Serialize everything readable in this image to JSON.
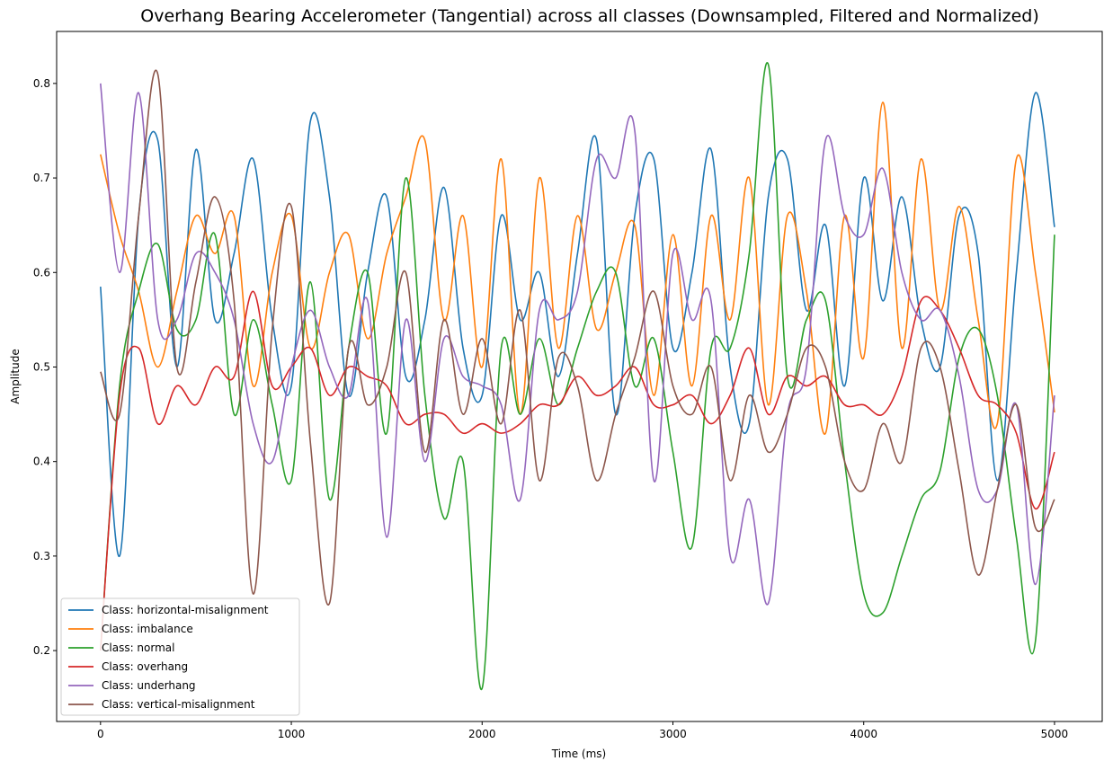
{
  "chart_data": {
    "type": "line",
    "title": "Overhang Bearing Accelerometer (Tangential) across all classes (Downsampled, Filtered and Normalized)",
    "xlabel": "Time (ms)",
    "ylabel": "Amplitude",
    "xlim": [
      -230,
      5250
    ],
    "ylim": [
      0.125,
      0.855
    ],
    "xticks": [
      0,
      1000,
      2000,
      3000,
      4000,
      5000
    ],
    "yticks": [
      0.2,
      0.3,
      0.4,
      0.5,
      0.6,
      0.7,
      0.8
    ],
    "xtick_labels": [
      "0",
      "1000",
      "2000",
      "3000",
      "4000",
      "5000"
    ],
    "ytick_labels": [
      "0.2",
      "0.3",
      "0.4",
      "0.5",
      "0.6",
      "0.7",
      "0.8"
    ],
    "legend_position": "lower-left",
    "grid": false,
    "x": [
      0,
      100,
      200,
      300,
      400,
      500,
      600,
      700,
      800,
      900,
      1000,
      1100,
      1200,
      1300,
      1400,
      1500,
      1600,
      1700,
      1800,
      1900,
      2000,
      2100,
      2200,
      2300,
      2400,
      2500,
      2600,
      2700,
      2800,
      2900,
      3000,
      3100,
      3200,
      3300,
      3400,
      3500,
      3600,
      3700,
      3800,
      3900,
      4000,
      4100,
      4200,
      4300,
      4400,
      4500,
      4600,
      4700,
      4800,
      4900,
      5000
    ],
    "series": [
      {
        "name": "Class: horizontal-misalignment",
        "color": "#1f77b4",
        "values": [
          0.585,
          0.3,
          0.66,
          0.74,
          0.5,
          0.73,
          0.55,
          0.62,
          0.72,
          0.55,
          0.48,
          0.76,
          0.68,
          0.47,
          0.6,
          0.68,
          0.49,
          0.55,
          0.69,
          0.52,
          0.47,
          0.66,
          0.55,
          0.6,
          0.49,
          0.62,
          0.74,
          0.45,
          0.66,
          0.72,
          0.52,
          0.6,
          0.73,
          0.5,
          0.44,
          0.68,
          0.72,
          0.56,
          0.65,
          0.48,
          0.7,
          0.57,
          0.68,
          0.55,
          0.5,
          0.66,
          0.62,
          0.38,
          0.6,
          0.79,
          0.648
        ]
      },
      {
        "name": "Class: imbalance",
        "color": "#ff7f0e",
        "values": [
          0.725,
          0.64,
          0.58,
          0.5,
          0.58,
          0.66,
          0.62,
          0.66,
          0.48,
          0.6,
          0.66,
          0.52,
          0.6,
          0.64,
          0.53,
          0.62,
          0.68,
          0.74,
          0.55,
          0.66,
          0.5,
          0.72,
          0.45,
          0.7,
          0.52,
          0.66,
          0.54,
          0.6,
          0.65,
          0.47,
          0.64,
          0.48,
          0.66,
          0.55,
          0.7,
          0.46,
          0.66,
          0.58,
          0.43,
          0.66,
          0.51,
          0.78,
          0.52,
          0.72,
          0.56,
          0.67,
          0.55,
          0.44,
          0.72,
          0.6,
          0.452
        ]
      },
      {
        "name": "Class: normal",
        "color": "#2ca02c",
        "values": [
          0.2,
          0.48,
          0.58,
          0.63,
          0.54,
          0.55,
          0.64,
          0.45,
          0.55,
          0.46,
          0.38,
          0.59,
          0.36,
          0.52,
          0.6,
          0.43,
          0.7,
          0.47,
          0.34,
          0.4,
          0.16,
          0.52,
          0.45,
          0.53,
          0.46,
          0.52,
          0.58,
          0.6,
          0.48,
          0.53,
          0.41,
          0.31,
          0.52,
          0.52,
          0.62,
          0.82,
          0.49,
          0.55,
          0.57,
          0.4,
          0.26,
          0.24,
          0.3,
          0.36,
          0.39,
          0.51,
          0.54,
          0.47,
          0.32,
          0.21,
          0.64
        ]
      },
      {
        "name": "Class: overhang",
        "color": "#d62728",
        "values": [
          0.2,
          0.47,
          0.52,
          0.44,
          0.48,
          0.46,
          0.5,
          0.49,
          0.58,
          0.48,
          0.5,
          0.52,
          0.47,
          0.5,
          0.49,
          0.48,
          0.44,
          0.45,
          0.45,
          0.43,
          0.44,
          0.43,
          0.44,
          0.46,
          0.46,
          0.49,
          0.47,
          0.48,
          0.5,
          0.46,
          0.46,
          0.47,
          0.44,
          0.47,
          0.52,
          0.45,
          0.49,
          0.48,
          0.49,
          0.46,
          0.46,
          0.45,
          0.49,
          0.57,
          0.56,
          0.52,
          0.47,
          0.46,
          0.43,
          0.35,
          0.41
        ]
      },
      {
        "name": "Class: underhang",
        "color": "#9467bd",
        "values": [
          0.8,
          0.6,
          0.79,
          0.55,
          0.55,
          0.62,
          0.6,
          0.55,
          0.44,
          0.4,
          0.5,
          0.56,
          0.5,
          0.47,
          0.57,
          0.32,
          0.55,
          0.4,
          0.53,
          0.49,
          0.48,
          0.46,
          0.36,
          0.56,
          0.55,
          0.58,
          0.72,
          0.7,
          0.75,
          0.38,
          0.62,
          0.55,
          0.57,
          0.3,
          0.36,
          0.25,
          0.45,
          0.5,
          0.74,
          0.66,
          0.64,
          0.71,
          0.6,
          0.55,
          0.56,
          0.49,
          0.37,
          0.37,
          0.46,
          0.27,
          0.47
        ]
      },
      {
        "name": "Class: vertical-misalignment",
        "color": "#8c564b",
        "values": [
          0.495,
          0.45,
          0.66,
          0.81,
          0.5,
          0.59,
          0.68,
          0.57,
          0.26,
          0.54,
          0.67,
          0.42,
          0.25,
          0.52,
          0.46,
          0.5,
          0.6,
          0.41,
          0.55,
          0.45,
          0.53,
          0.44,
          0.56,
          0.38,
          0.51,
          0.48,
          0.38,
          0.45,
          0.51,
          0.58,
          0.48,
          0.45,
          0.5,
          0.38,
          0.47,
          0.41,
          0.45,
          0.52,
          0.5,
          0.4,
          0.37,
          0.44,
          0.4,
          0.52,
          0.5,
          0.39,
          0.28,
          0.37,
          0.46,
          0.33,
          0.36
        ]
      }
    ]
  }
}
